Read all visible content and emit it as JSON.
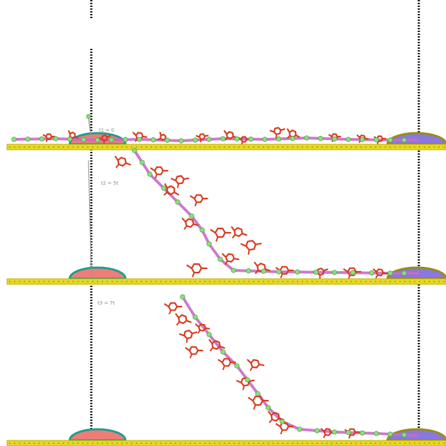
{
  "panels": [
    {
      "id": "top",
      "label": "t1 = 0",
      "force_arrow": true,
      "colors": {}
    },
    {
      "id": "middle",
      "label": "t2 = 5t",
      "force_arrow": true,
      "colors": {}
    },
    {
      "id": "bottom",
      "label": "t3 = 7t",
      "force_arrow": false,
      "colors": {}
    }
  ],
  "colors": {
    "substrate": "#e6d820",
    "substrate_edge": "#b9a800",
    "left_tip": "#f07c78",
    "left_tip_ring": "#1aa08e",
    "right_tip": "#8878e0",
    "right_tip_ring": "#9a8c10",
    "backbone": "#c76bc6",
    "bead": "#88e07a",
    "side_group": "#d93a1e",
    "guide_line": "#111111",
    "force_line": "#9a9a9a"
  }
}
